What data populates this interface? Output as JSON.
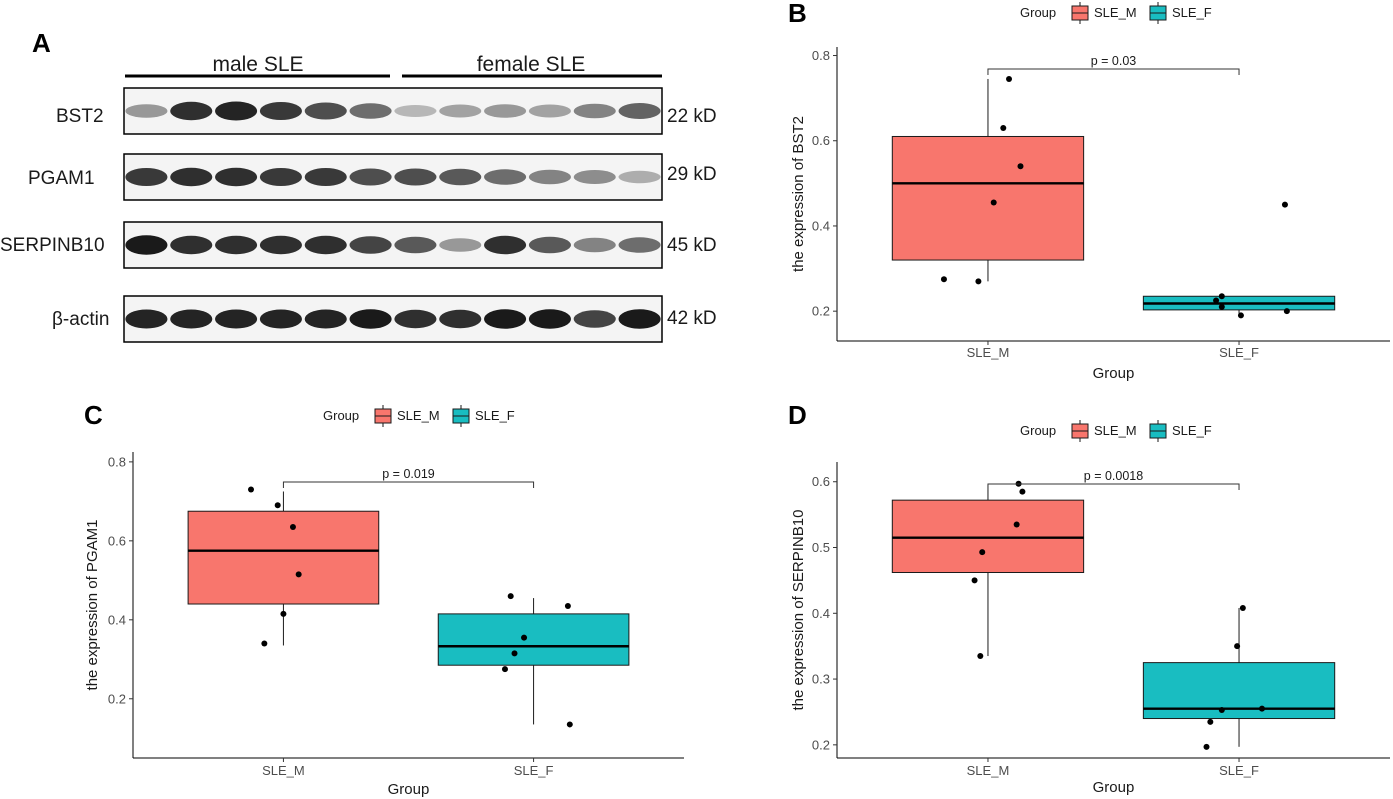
{
  "colors": {
    "male": "#F8766D",
    "female": "#19BDC1",
    "line": "#1a1a1a",
    "axis": "#4d4d4d"
  },
  "panel_a": {
    "letter": "A",
    "groups": [
      "male SLE",
      "female SLE"
    ],
    "rows": [
      {
        "protein": "BST2",
        "kd": "22 kD"
      },
      {
        "protein": "PGAM1",
        "kd": "29 kD"
      },
      {
        "protein": "SERPINB10",
        "kd": "45 kD"
      },
      {
        "protein": "β-actin",
        "kd": "42 kD"
      }
    ],
    "band_intensity": [
      [
        0.35,
        0.85,
        0.9,
        0.8,
        0.7,
        0.55,
        0.2,
        0.3,
        0.35,
        0.3,
        0.45,
        0.6
      ],
      [
        0.8,
        0.85,
        0.85,
        0.8,
        0.8,
        0.7,
        0.7,
        0.65,
        0.55,
        0.45,
        0.4,
        0.25
      ],
      [
        0.95,
        0.85,
        0.85,
        0.85,
        0.85,
        0.75,
        0.65,
        0.35,
        0.85,
        0.65,
        0.45,
        0.55
      ],
      [
        0.9,
        0.9,
        0.9,
        0.9,
        0.9,
        0.95,
        0.85,
        0.85,
        0.95,
        0.95,
        0.75,
        0.95
      ]
    ]
  },
  "chart_data": [
    {
      "panel": "B",
      "type": "boxplot",
      "legend_title": "Group",
      "legend": [
        "SLE_M",
        "SLE_F"
      ],
      "xlabel": "Group",
      "ylabel": "the expression of BST2",
      "categories": [
        "SLE_M",
        "SLE_F"
      ],
      "ylim": [
        0.13,
        0.82
      ],
      "yticks": [
        0.2,
        0.4,
        0.6,
        0.8
      ],
      "boxes": [
        {
          "name": "SLE_M",
          "q1": 0.32,
          "median": 0.5,
          "q3": 0.61,
          "whisker_low": 0.27,
          "whisker_high": 0.745
        },
        {
          "name": "SLE_F",
          "q1": 0.203,
          "median": 0.218,
          "q3": 0.235,
          "whisker_low": 0.19,
          "whisker_high": 0.235
        }
      ],
      "points": [
        [
          {
            "dx": -0.23,
            "y": 0.275
          },
          {
            "dx": -0.05,
            "y": 0.27
          },
          {
            "dx": 0.03,
            "y": 0.455
          },
          {
            "dx": 0.08,
            "y": 0.63
          },
          {
            "dx": 0.11,
            "y": 0.745
          },
          {
            "dx": 0.17,
            "y": 0.54
          }
        ],
        [
          {
            "dx": -0.12,
            "y": 0.225
          },
          {
            "dx": -0.09,
            "y": 0.235
          },
          {
            "dx": -0.09,
            "y": 0.21
          },
          {
            "dx": 0.01,
            "y": 0.19
          },
          {
            "dx": 0.24,
            "y": 0.45
          },
          {
            "dx": 0.25,
            "y": 0.2
          }
        ]
      ],
      "p_label": "p = 0.03"
    },
    {
      "panel": "C",
      "type": "boxplot",
      "legend_title": "Group",
      "legend": [
        "SLE_M",
        "SLE_F"
      ],
      "xlabel": "Group",
      "ylabel": "the expression of PGAM1",
      "categories": [
        "SLE_M",
        "SLE_F"
      ],
      "ylim": [
        0.05,
        0.825
      ],
      "yticks": [
        0.2,
        0.4,
        0.6,
        0.8
      ],
      "boxes": [
        {
          "name": "SLE_M",
          "q1": 0.44,
          "median": 0.575,
          "q3": 0.675,
          "whisker_low": 0.335,
          "whisker_high": 0.725
        },
        {
          "name": "SLE_F",
          "q1": 0.285,
          "median": 0.333,
          "q3": 0.415,
          "whisker_low": 0.135,
          "whisker_high": 0.455
        }
      ],
      "points": [
        [
          {
            "dx": -0.17,
            "y": 0.73
          },
          {
            "dx": -0.1,
            "y": 0.34
          },
          {
            "dx": -0.03,
            "y": 0.69
          },
          {
            "dx": 0.0,
            "y": 0.415
          },
          {
            "dx": 0.05,
            "y": 0.635
          },
          {
            "dx": 0.08,
            "y": 0.515
          }
        ],
        [
          {
            "dx": -0.15,
            "y": 0.275
          },
          {
            "dx": -0.12,
            "y": 0.46
          },
          {
            "dx": -0.1,
            "y": 0.315
          },
          {
            "dx": -0.05,
            "y": 0.355
          },
          {
            "dx": 0.18,
            "y": 0.435
          },
          {
            "dx": 0.19,
            "y": 0.135
          }
        ]
      ],
      "p_label": "p = 0.019"
    },
    {
      "panel": "D",
      "type": "boxplot",
      "legend_title": "Group",
      "legend": [
        "SLE_M",
        "SLE_F"
      ],
      "xlabel": "Group",
      "ylabel": "the expression of SERPINB10",
      "categories": [
        "SLE_M",
        "SLE_F"
      ],
      "ylim": [
        0.18,
        0.63
      ],
      "yticks": [
        0.2,
        0.3,
        0.4,
        0.5,
        0.6
      ],
      "boxes": [
        {
          "name": "SLE_M",
          "q1": 0.462,
          "median": 0.515,
          "q3": 0.572,
          "whisker_low": 0.335,
          "whisker_high": 0.595
        },
        {
          "name": "SLE_F",
          "q1": 0.24,
          "median": 0.255,
          "q3": 0.325,
          "whisker_low": 0.197,
          "whisker_high": 0.408
        }
      ],
      "points": [
        [
          {
            "dx": -0.07,
            "y": 0.45
          },
          {
            "dx": -0.04,
            "y": 0.335
          },
          {
            "dx": -0.03,
            "y": 0.493
          },
          {
            "dx": 0.15,
            "y": 0.535
          },
          {
            "dx": 0.16,
            "y": 0.597
          },
          {
            "dx": 0.18,
            "y": 0.585
          }
        ],
        [
          {
            "dx": -0.17,
            "y": 0.197
          },
          {
            "dx": -0.15,
            "y": 0.235
          },
          {
            "dx": -0.09,
            "y": 0.253
          },
          {
            "dx": -0.01,
            "y": 0.35
          },
          {
            "dx": 0.02,
            "y": 0.408
          },
          {
            "dx": 0.12,
            "y": 0.255
          }
        ]
      ],
      "p_label": "p = 0.0018"
    }
  ]
}
